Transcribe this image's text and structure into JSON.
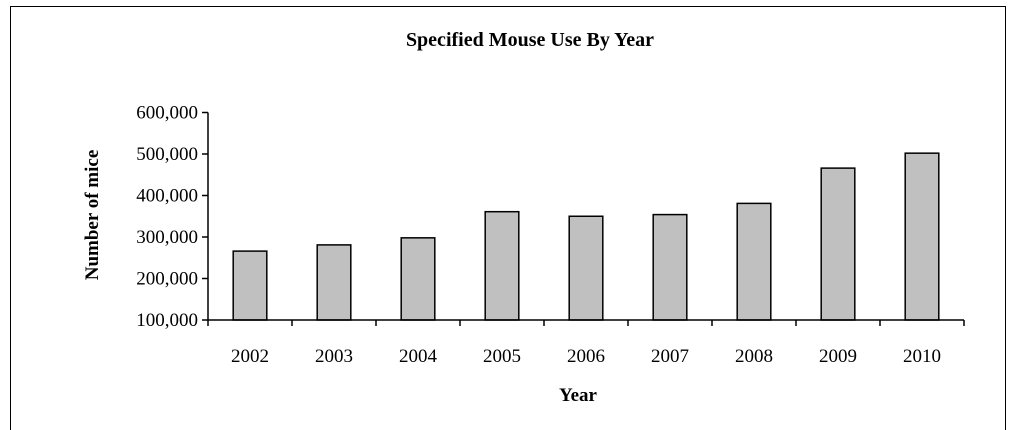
{
  "chart_data": {
    "type": "bar",
    "title": "Specified Mouse Use By Year",
    "xlabel": "Year",
    "ylabel": "Number of mice",
    "categories": [
      "2002",
      "2003",
      "2004",
      "2005",
      "2006",
      "2007",
      "2008",
      "2009",
      "2010"
    ],
    "values": [
      266000,
      281000,
      298000,
      361000,
      350000,
      354000,
      381000,
      466000,
      502000
    ],
    "ylim": [
      100000,
      600000
    ],
    "yticks": [
      100000,
      200000,
      300000,
      400000,
      500000,
      600000
    ],
    "ytick_labels": [
      "100,000",
      "200,000",
      "300,000",
      "400,000",
      "500,000",
      "600,000"
    ],
    "grid": false,
    "legend": "none",
    "bar_color": "#c0c0c0",
    "bar_edge_color": "#000000"
  }
}
